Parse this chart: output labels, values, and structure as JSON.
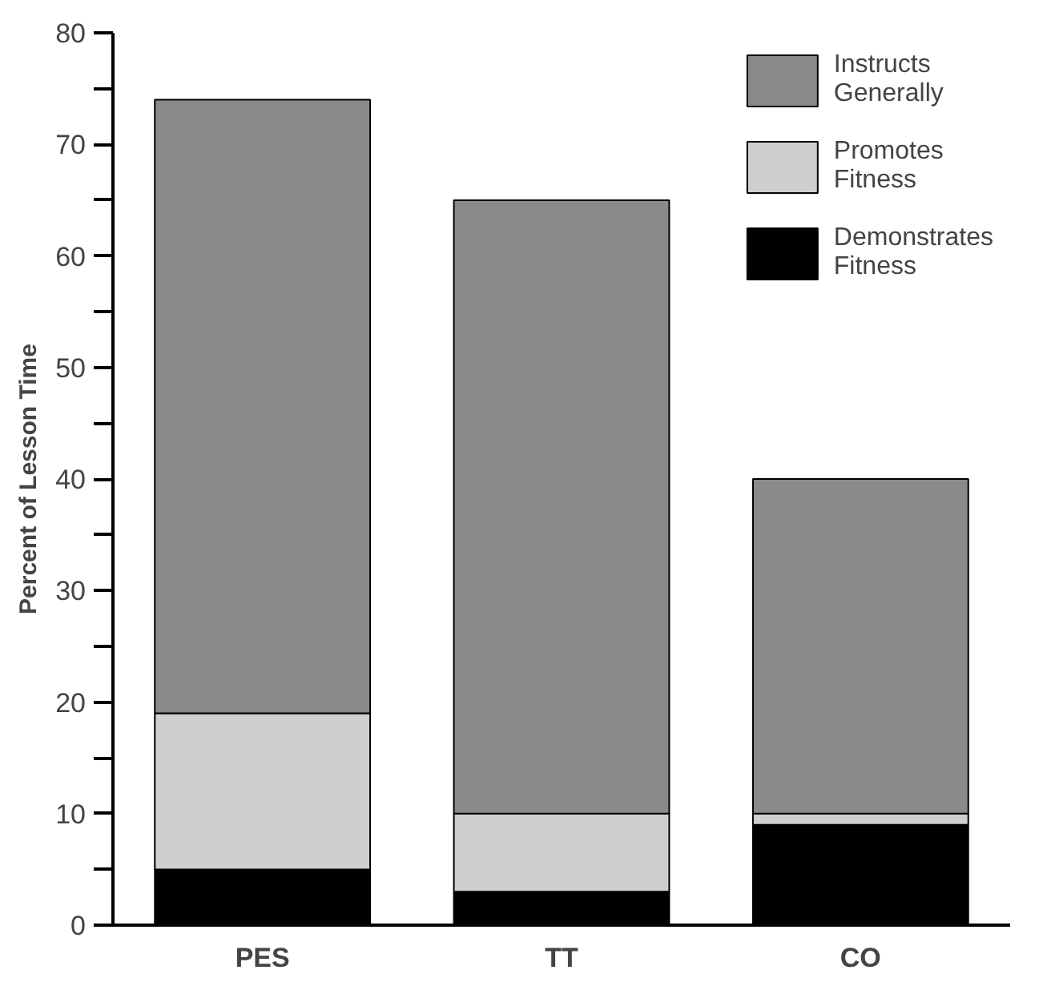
{
  "chart_data": {
    "type": "bar",
    "stacked": true,
    "ylabel": "Percent of Lesson Time",
    "categories": [
      "PES",
      "TT",
      "CO"
    ],
    "series": [
      {
        "name": "Demonstrates Fitness",
        "color": "#000000",
        "values": [
          5,
          3,
          9
        ]
      },
      {
        "name": "Promotes Fitness",
        "color": "#cfcfcf",
        "values": [
          14,
          7,
          1
        ]
      },
      {
        "name": "Instructs Generally",
        "color": "#8a8a8a",
        "values": [
          55,
          55,
          30
        ]
      }
    ],
    "ylim": [
      0,
      80
    ],
    "yticks": [
      0,
      {
        "value": 5,
        "label": null
      },
      10,
      {
        "value": 15,
        "label": null
      },
      20,
      {
        "value": 25,
        "label": null
      },
      30,
      {
        "value": 35,
        "label": null
      },
      40,
      {
        "value": 45,
        "label": null
      },
      50,
      {
        "value": 55,
        "label": null
      },
      60,
      {
        "value": 65,
        "label": null
      },
      70,
      {
        "value": 75,
        "label": null
      },
      80
    ],
    "grid": false,
    "legend": "top right"
  }
}
